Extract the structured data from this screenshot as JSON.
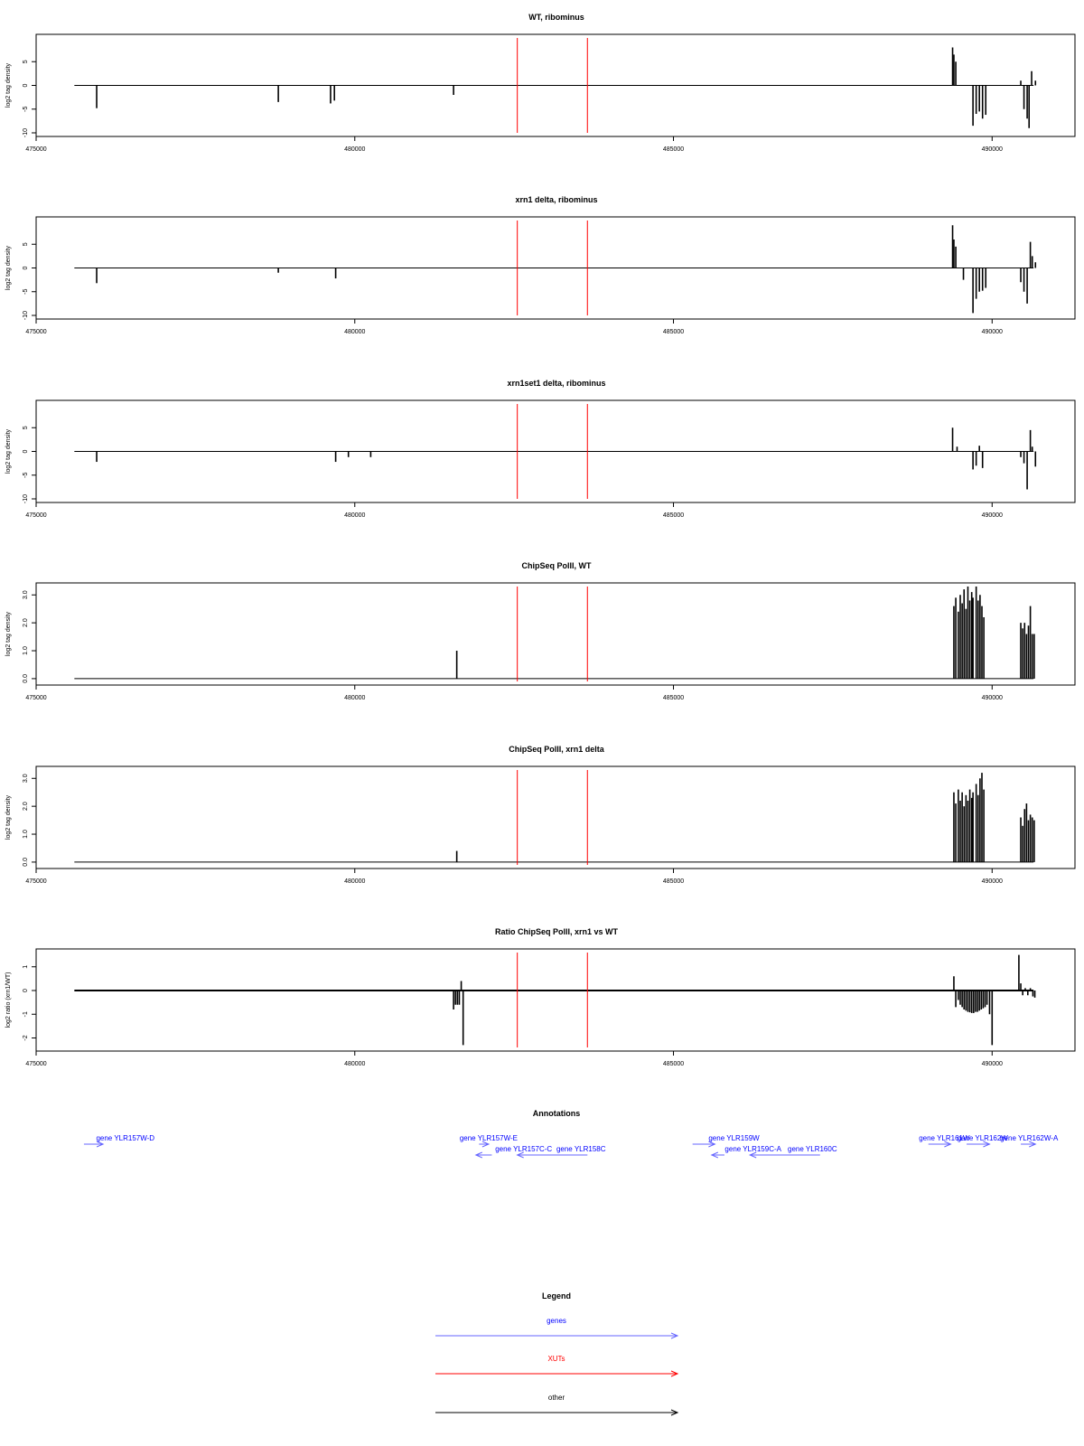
{
  "colors": {
    "gene": "#0000ff",
    "xut": "#ff0000",
    "other": "#000000",
    "gene_arrow": "#6666ff"
  },
  "x_axis": {
    "range": [
      475000,
      491300
    ],
    "ticks": [
      475000,
      480000,
      485000,
      490000
    ],
    "tick_labels": [
      "475000",
      "480000",
      "485000",
      "490000"
    ]
  },
  "chart_data": [
    {
      "type": "bar",
      "title": "WT, ribominus",
      "ylabel": "log2 tag density",
      "ylim": [
        -10,
        10
      ],
      "yticks": [
        -10,
        -5,
        0,
        5
      ],
      "ytick_labels": [
        "-10",
        "-5",
        "0",
        "5"
      ],
      "baseline": {
        "from": 475600,
        "to": 490650
      },
      "values": [
        [
          475950,
          -4.8
        ],
        [
          478800,
          -3.5
        ],
        [
          479620,
          -3.8
        ],
        [
          479680,
          -3.2
        ],
        [
          481550,
          -2.0
        ],
        [
          489380,
          8.0
        ],
        [
          489400,
          6.5
        ],
        [
          489430,
          5.0
        ],
        [
          489700,
          -8.5
        ],
        [
          489750,
          -6.0
        ],
        [
          489800,
          -5.5
        ],
        [
          489850,
          -7.0
        ],
        [
          489900,
          -6.2
        ],
        [
          490450,
          1.0
        ],
        [
          490500,
          -5.0
        ],
        [
          490550,
          -7.0
        ],
        [
          490580,
          -9.0
        ],
        [
          490620,
          3.0
        ],
        [
          490680,
          1.0
        ]
      ],
      "xut_markers": [
        482550,
        483650
      ]
    },
    {
      "type": "bar",
      "title": "xrn1 delta, ribominus",
      "ylabel": "log2 tag density",
      "ylim": [
        -10,
        10
      ],
      "yticks": [
        -10,
        -5,
        0,
        5
      ],
      "ytick_labels": [
        "-10",
        "-5",
        "0",
        "5"
      ],
      "baseline": {
        "from": 475600,
        "to": 490650
      },
      "values": [
        [
          475950,
          -3.2
        ],
        [
          478800,
          -1.0
        ],
        [
          479700,
          -2.2
        ],
        [
          489380,
          9.0
        ],
        [
          489400,
          6.0
        ],
        [
          489430,
          4.5
        ],
        [
          489550,
          -2.5
        ],
        [
          489700,
          -9.5
        ],
        [
          489750,
          -6.5
        ],
        [
          489800,
          -5.0
        ],
        [
          489850,
          -4.8
        ],
        [
          489900,
          -4.2
        ],
        [
          490450,
          -3.0
        ],
        [
          490500,
          -5.0
        ],
        [
          490550,
          -7.5
        ],
        [
          490600,
          5.5
        ],
        [
          490630,
          2.5
        ],
        [
          490680,
          1.2
        ]
      ],
      "xut_markers": [
        482550,
        483650
      ]
    },
    {
      "type": "bar",
      "title": "xrn1set1 delta, ribominus",
      "ylabel": "log2 tag density",
      "ylim": [
        -10,
        10
      ],
      "yticks": [
        -10,
        -5,
        0,
        5
      ],
      "ytick_labels": [
        "-10",
        "-5",
        "0",
        "5"
      ],
      "baseline": {
        "from": 475600,
        "to": 490650
      },
      "values": [
        [
          475950,
          -2.2
        ],
        [
          479700,
          -2.2
        ],
        [
          479900,
          -1.2
        ],
        [
          480250,
          -1.2
        ],
        [
          489380,
          5.0
        ],
        [
          489450,
          1.0
        ],
        [
          489700,
          -3.8
        ],
        [
          489750,
          -3.0
        ],
        [
          489800,
          1.2
        ],
        [
          489850,
          -3.5
        ],
        [
          490450,
          -1.2
        ],
        [
          490500,
          -2.5
        ],
        [
          490550,
          -8.0
        ],
        [
          490600,
          4.5
        ],
        [
          490630,
          1.0
        ],
        [
          490680,
          -3.2
        ]
      ],
      "xut_markers": [
        482550,
        483650
      ]
    },
    {
      "type": "bar",
      "title": "ChipSeq PolII, WT",
      "ylabel": "log2 tag density",
      "ylim": [
        -0.1,
        3.3
      ],
      "yticks": [
        0,
        1,
        2,
        3
      ],
      "ytick_labels": [
        "0.0",
        "1.0",
        "2.0",
        "3.0"
      ],
      "baseline": {
        "from": 475600,
        "to": 490650
      },
      "values": [
        [
          481600,
          1.0
        ],
        [
          489400,
          2.6
        ],
        [
          489430,
          2.9
        ],
        [
          489470,
          2.4
        ],
        [
          489500,
          3.0
        ],
        [
          489530,
          2.7
        ],
        [
          489560,
          3.2
        ],
        [
          489590,
          2.5
        ],
        [
          489620,
          3.3
        ],
        [
          489650,
          2.8
        ],
        [
          489680,
          3.1
        ],
        [
          489700,
          2.9
        ],
        [
          489750,
          3.3
        ],
        [
          489780,
          2.8
        ],
        [
          489810,
          3.0
        ],
        [
          489840,
          2.6
        ],
        [
          489870,
          2.2
        ],
        [
          490450,
          2.0
        ],
        [
          490480,
          1.8
        ],
        [
          490510,
          2.0
        ],
        [
          490540,
          1.6
        ],
        [
          490570,
          1.9
        ],
        [
          490600,
          2.6
        ],
        [
          490630,
          1.6
        ],
        [
          490660,
          1.6
        ]
      ],
      "xut_markers": [
        482550,
        483650
      ]
    },
    {
      "type": "bar",
      "title": "ChipSeq PolII, xrn1 delta",
      "ylabel": "log2 tag density",
      "ylim": [
        -0.1,
        3.3
      ],
      "yticks": [
        0,
        1,
        2,
        3
      ],
      "ytick_labels": [
        "0.0",
        "1.0",
        "2.0",
        "3.0"
      ],
      "baseline": {
        "from": 475600,
        "to": 490650
      },
      "values": [
        [
          481600,
          0.4
        ],
        [
          489400,
          2.5
        ],
        [
          489430,
          2.1
        ],
        [
          489470,
          2.6
        ],
        [
          489500,
          2.2
        ],
        [
          489530,
          2.5
        ],
        [
          489560,
          2.0
        ],
        [
          489590,
          2.4
        ],
        [
          489620,
          2.2
        ],
        [
          489650,
          2.6
        ],
        [
          489680,
          2.3
        ],
        [
          489700,
          2.5
        ],
        [
          489750,
          2.8
        ],
        [
          489780,
          2.4
        ],
        [
          489810,
          3.0
        ],
        [
          489840,
          3.2
        ],
        [
          489870,
          2.6
        ],
        [
          490450,
          1.6
        ],
        [
          490480,
          1.3
        ],
        [
          490510,
          1.9
        ],
        [
          490540,
          2.1
        ],
        [
          490570,
          1.5
        ],
        [
          490600,
          1.7
        ],
        [
          490630,
          1.6
        ],
        [
          490660,
          1.5
        ]
      ],
      "xut_markers": [
        482550,
        483650
      ]
    },
    {
      "type": "bar",
      "title": "Ratio ChipSeq PolII, xrn1 vs WT",
      "ylabel": "log2 ratio (xrn1/WT)",
      "ylim": [
        -2.4,
        1.6
      ],
      "yticks": [
        -2,
        -1,
        0,
        1
      ],
      "ytick_labels": [
        "-2",
        "-1",
        "0",
        "1"
      ],
      "baseline": {
        "from": 475600,
        "to": 490650
      },
      "values": [
        [
          481550,
          -0.8
        ],
        [
          481580,
          -0.6
        ],
        [
          481610,
          -0.6
        ],
        [
          481640,
          -0.6
        ],
        [
          481670,
          0.4
        ],
        [
          481700,
          -2.3
        ],
        [
          489400,
          0.6
        ],
        [
          489430,
          -0.7
        ],
        [
          489470,
          -0.4
        ],
        [
          489500,
          -0.6
        ],
        [
          489530,
          -0.7
        ],
        [
          489560,
          -0.8
        ],
        [
          489590,
          -0.85
        ],
        [
          489620,
          -0.9
        ],
        [
          489650,
          -0.92
        ],
        [
          489680,
          -0.95
        ],
        [
          489710,
          -0.95
        ],
        [
          489740,
          -0.9
        ],
        [
          489770,
          -0.9
        ],
        [
          489800,
          -0.85
        ],
        [
          489830,
          -0.8
        ],
        [
          489860,
          -0.75
        ],
        [
          489890,
          -0.7
        ],
        [
          489920,
          -0.6
        ],
        [
          489960,
          -1.0
        ],
        [
          490000,
          -2.3
        ],
        [
          490420,
          1.5
        ],
        [
          490450,
          0.3
        ],
        [
          490480,
          -0.2
        ],
        [
          490520,
          0.1
        ],
        [
          490560,
          -0.2
        ],
        [
          490600,
          0.1
        ],
        [
          490640,
          -0.25
        ],
        [
          490670,
          -0.3
        ]
      ],
      "xut_markers": [
        482550,
        483650
      ]
    }
  ],
  "annotations": {
    "title": "Annotations",
    "genes": [
      {
        "label": "gene YLR157W-D",
        "label_x": 476400,
        "row": 0,
        "from": 475750,
        "to": 476050
      },
      {
        "label": "gene YLR157W-E",
        "label_x": 482100,
        "row": 0,
        "from": 481950,
        "to": 482100
      },
      {
        "label": "gene YLR157C-C",
        "label_x": 482650,
        "row": 1,
        "from": 482150,
        "to": 481900
      },
      {
        "label": "gene YLR158C",
        "label_x": 483550,
        "row": 1,
        "from": 483650,
        "to": 482550
      },
      {
        "label": "gene YLR159W",
        "label_x": 485950,
        "row": 0,
        "from": 485300,
        "to": 485650
      },
      {
        "label": "gene YLR159C-A",
        "label_x": 486250,
        "row": 1,
        "from": 485800,
        "to": 485600
      },
      {
        "label": "gene YLR160C",
        "label_x": 487180,
        "row": 1,
        "from": 487300,
        "to": 486200
      },
      {
        "label": "gene YLR161W",
        "label_x": 489250,
        "row": 0,
        "from": 489000,
        "to": 489350
      },
      {
        "label": "gene YLR162W",
        "label_x": 489850,
        "row": 0,
        "from": 489600,
        "to": 489960
      },
      {
        "label": "gene YLR162W-A",
        "label_x": 490580,
        "row": 0,
        "from": 490450,
        "to": 490680
      }
    ]
  },
  "legend": {
    "title": "Legend",
    "items": [
      {
        "label": "genes",
        "key": "gene"
      },
      {
        "label": "XUTs",
        "key": "xut"
      },
      {
        "label": "other",
        "key": "other"
      }
    ]
  }
}
